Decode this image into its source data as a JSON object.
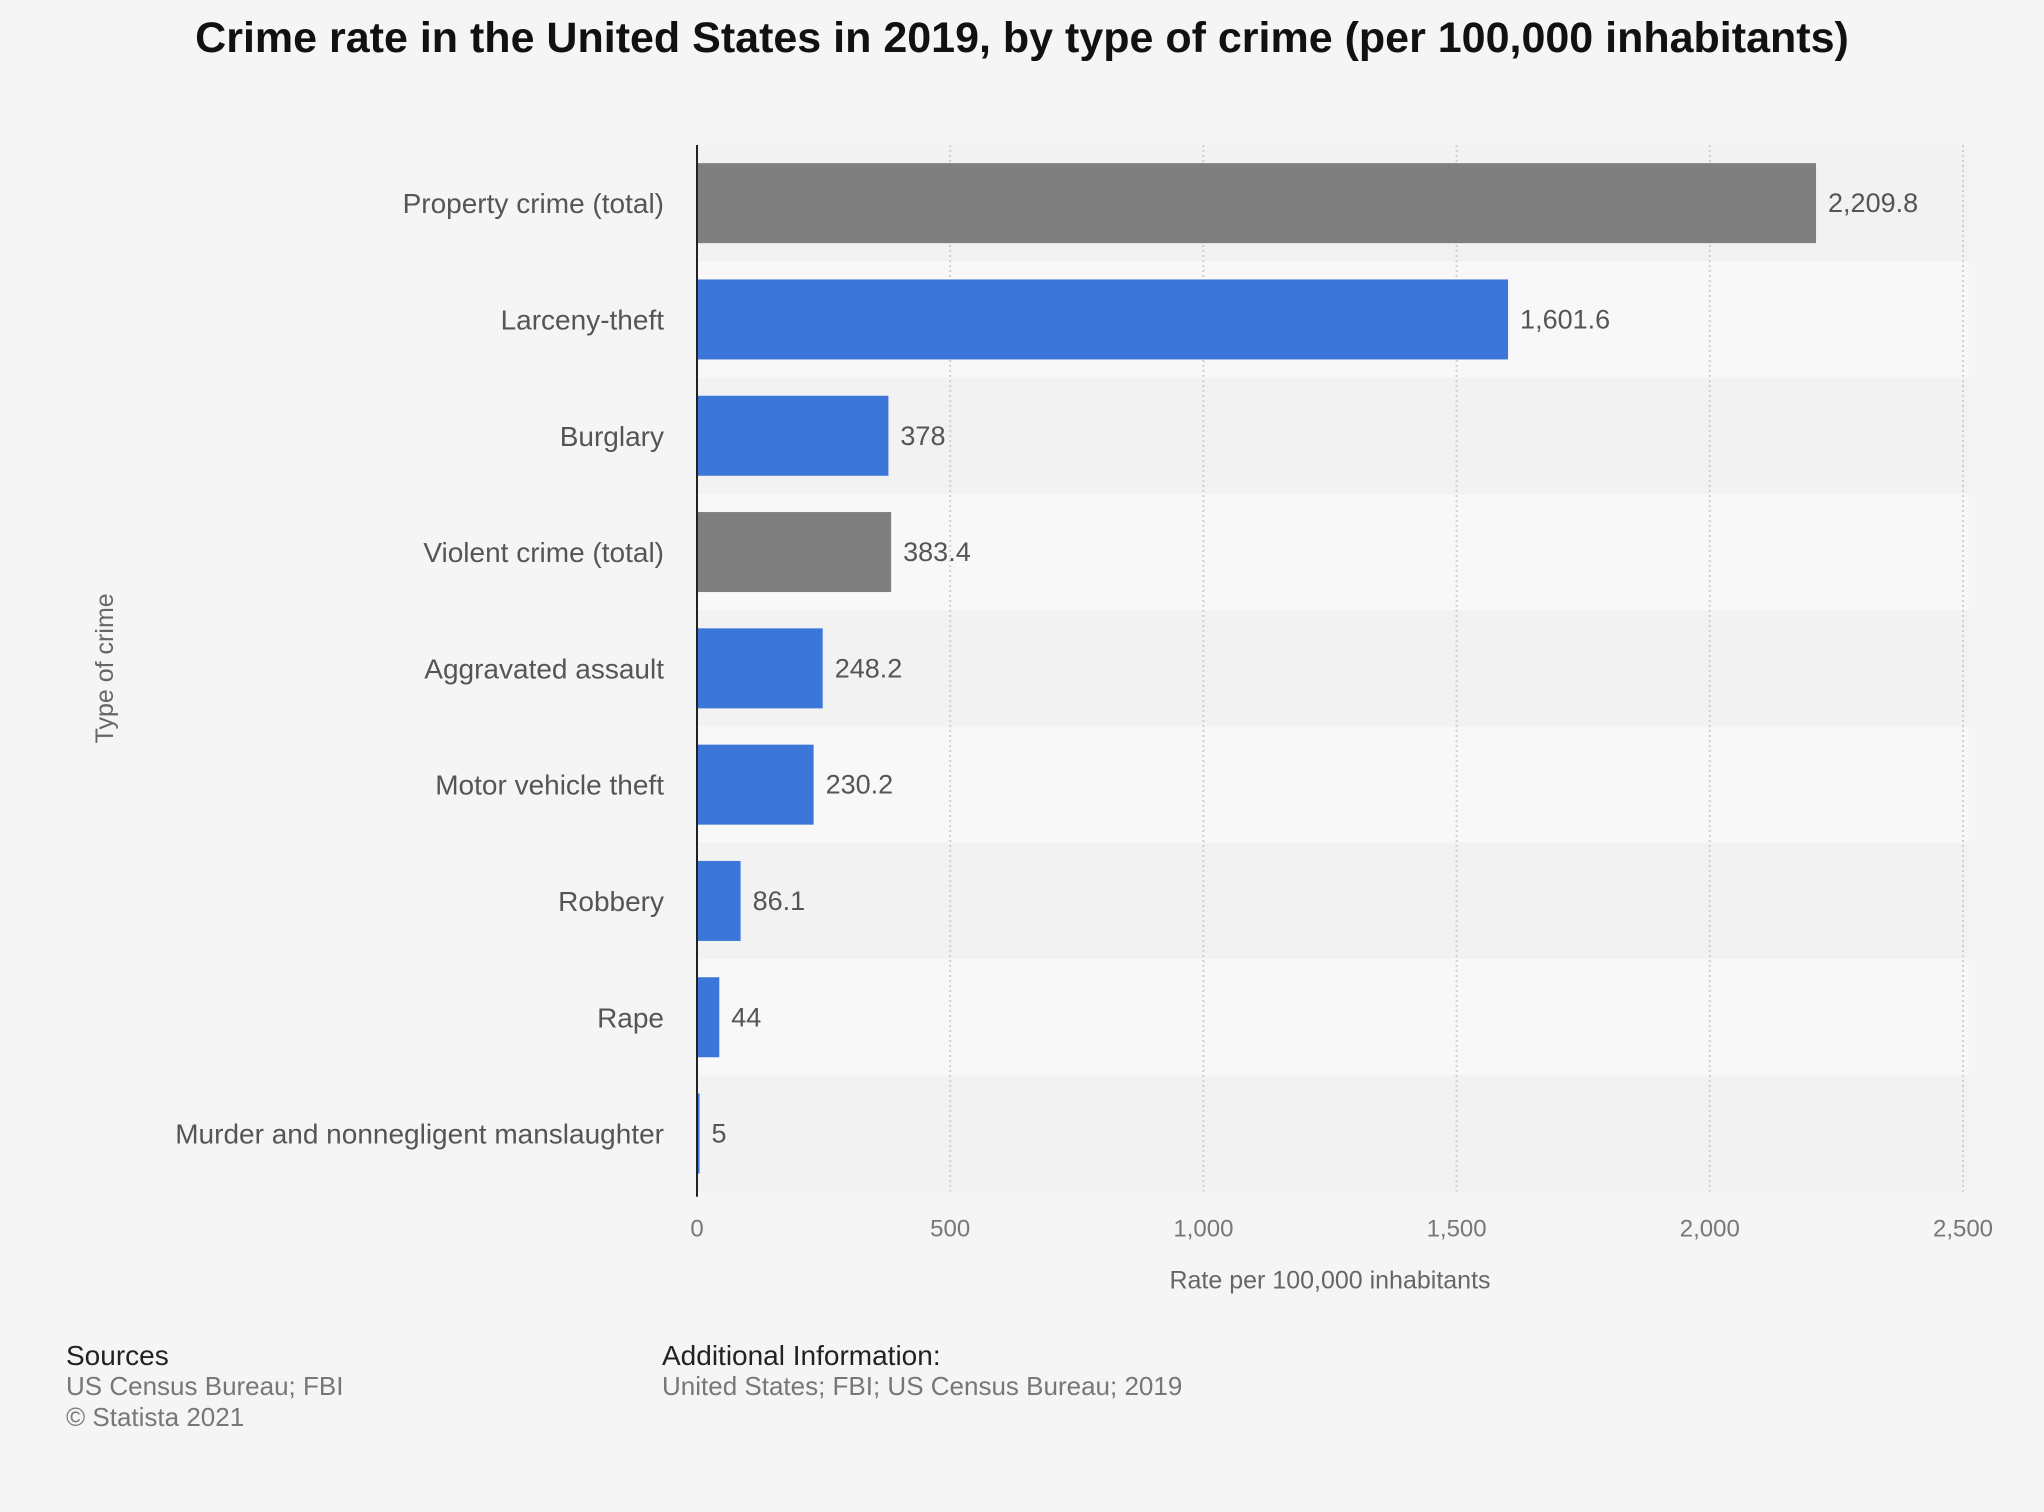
{
  "chart_data": {
    "type": "bar",
    "orientation": "horizontal",
    "title": "Crime rate in the United States in 2019, by type of crime (per 100,000 inhabitants)",
    "xlabel": "Rate per 100,000 inhabitants",
    "ylabel": "Type of crime",
    "xlim": [
      0,
      2500
    ],
    "x_ticks": [
      0,
      500,
      1000,
      1500,
      2000,
      2500
    ],
    "x_tick_labels": [
      "0",
      "500",
      "1,000",
      "1,500",
      "2,000",
      "2,500"
    ],
    "grid": "vertical dotted",
    "categories": [
      "Property crime (total)",
      "Larceny-theft",
      "Burglary",
      "Violent crime (total)",
      "Aggravated assault",
      "Motor vehicle theft",
      "Robbery",
      "Rape",
      "Murder and nonnegligent manslaughter"
    ],
    "values": [
      2209.8,
      1601.6,
      378,
      383.4,
      248.2,
      230.2,
      86.1,
      44,
      5
    ],
    "value_labels": [
      "2,209.8",
      "1,601.6",
      "378",
      "383.4",
      "248.2",
      "230.2",
      "86.1",
      "44",
      "5"
    ],
    "bar_colors": [
      "#7f7f7f",
      "#3b76d8",
      "#3b76d8",
      "#7f7f7f",
      "#3b76d8",
      "#3b76d8",
      "#3b76d8",
      "#3b76d8",
      "#3b76d8"
    ]
  },
  "footer": {
    "sources_heading": "Sources",
    "sources_line1": "US Census Bureau; FBI",
    "sources_line2": "© Statista 2021",
    "additional_heading": "Additional Information:",
    "additional_line": "United States; FBI; US Census Bureau; 2019"
  }
}
